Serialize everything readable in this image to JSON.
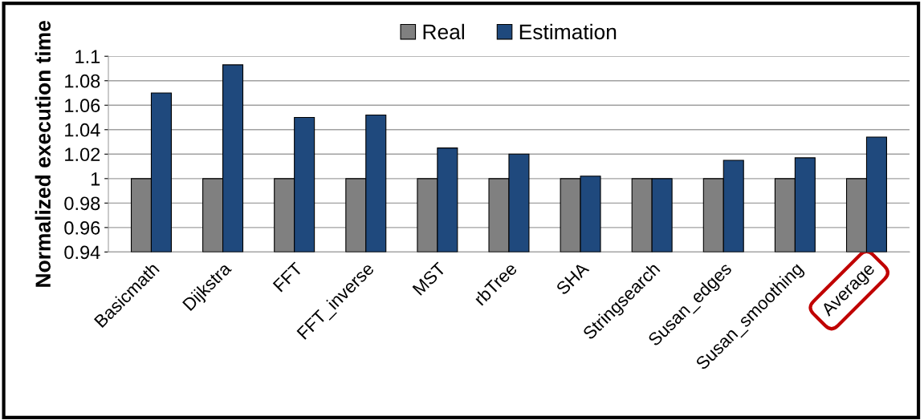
{
  "chart_data": {
    "type": "bar",
    "ylabel": "Normalized execution time",
    "categories": [
      "Basicmath",
      "Dijkstra",
      "FFT",
      "FFT_inverse",
      "MST",
      "rbTree",
      "SHA",
      "Stringsearch",
      "Susan_edges",
      "Susan_smoothing",
      "Average"
    ],
    "series": [
      {
        "name": "Real",
        "color": "#808080",
        "values": [
          1,
          1,
          1,
          1,
          1,
          1,
          1,
          1,
          1,
          1,
          1
        ]
      },
      {
        "name": "Estimation",
        "color": "#1f497d",
        "values": [
          1.07,
          1.093,
          1.05,
          1.052,
          1.025,
          1.02,
          1.002,
          1.0,
          1.015,
          1.017,
          1.034
        ]
      }
    ],
    "ylim": [
      0.94,
      1.1
    ],
    "yticks": [
      0.94,
      0.96,
      0.98,
      1,
      1.02,
      1.04,
      1.06,
      1.08,
      1.1
    ],
    "grid": "y",
    "legend": "top"
  }
}
